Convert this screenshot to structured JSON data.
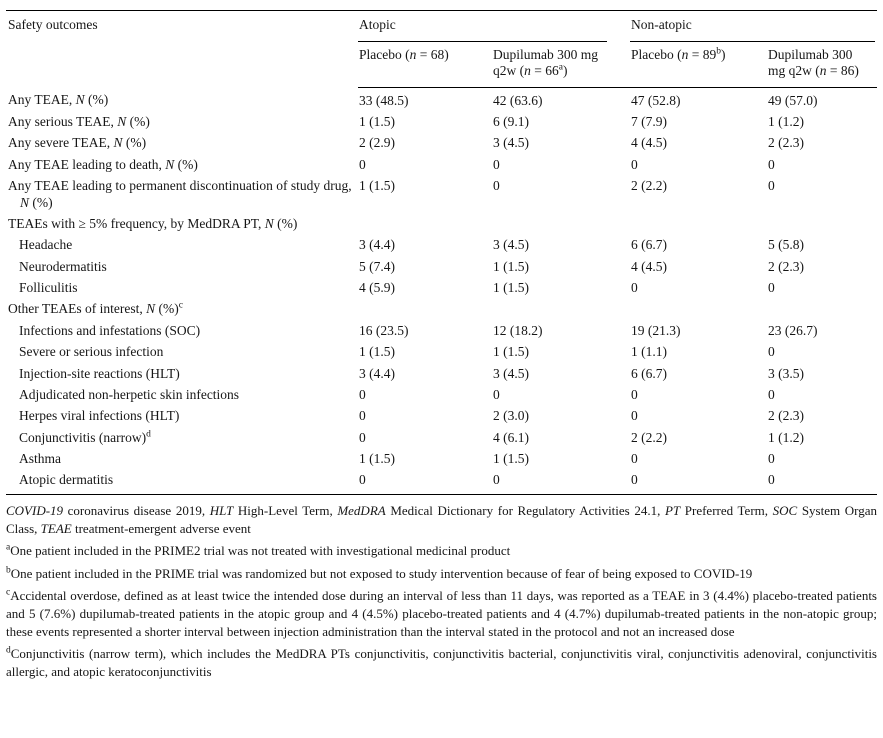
{
  "table": {
    "corner_label": "Safety outcomes",
    "groups": [
      {
        "label": "Atopic",
        "columns": [
          "Placebo (<i>n</i> = 68)",
          "Dupilumab 300 mg q2w (<i>n</i> = 66<sup>a</sup>)"
        ]
      },
      {
        "label": "Non-atopic",
        "columns": [
          "Placebo (<i>n</i> = 89<sup>b</sup>)",
          "Dupilumab 300 mg q2w (<i>n</i> = 86)"
        ]
      }
    ],
    "rows": [
      {
        "label": "Any TEAE, <i>N</i> (%)",
        "indent": 0,
        "section": false,
        "values": [
          "33 (48.5)",
          "42 (63.6)",
          "47 (52.8)",
          "49 (57.0)"
        ]
      },
      {
        "label": "Any serious TEAE, <i>N</i> (%)",
        "indent": 0,
        "section": false,
        "values": [
          "1 (1.5)",
          "6 (9.1)",
          "7 (7.9)",
          "1 (1.2)"
        ]
      },
      {
        "label": "Any severe TEAE, <i>N</i> (%)",
        "indent": 0,
        "section": false,
        "values": [
          "2 (2.9)",
          "3 (4.5)",
          "4 (4.5)",
          "2 (2.3)"
        ]
      },
      {
        "label": "Any TEAE leading to death, <i>N</i> (%)",
        "indent": 0,
        "section": false,
        "values": [
          "0",
          "0",
          "0",
          "0"
        ]
      },
      {
        "label": "Any TEAE leading to permanent discontinuation of study drug, <i>N</i> (%)",
        "indent": 0,
        "section": false,
        "values": [
          "1 (1.5)",
          "0",
          "2 (2.2)",
          "0"
        ]
      },
      {
        "label": "TEAEs with ≥ 5% frequency, by MedDRA PT, <i>N</i> (%)",
        "indent": 0,
        "section": true,
        "values": [
          "",
          "",
          "",
          ""
        ]
      },
      {
        "label": "Headache",
        "indent": 1,
        "section": false,
        "values": [
          "3 (4.4)",
          "3 (4.5)",
          "6 (6.7)",
          "5 (5.8)"
        ]
      },
      {
        "label": "Neurodermatitis",
        "indent": 1,
        "section": false,
        "values": [
          "5 (7.4)",
          "1 (1.5)",
          "4 (4.5)",
          "2 (2.3)"
        ]
      },
      {
        "label": "Folliculitis",
        "indent": 1,
        "section": false,
        "values": [
          "4 (5.9)",
          "1 (1.5)",
          "0",
          "0"
        ]
      },
      {
        "label": "Other TEAEs of interest, <i>N</i> (%)<sup>c</sup>",
        "indent": 0,
        "section": true,
        "values": [
          "",
          "",
          "",
          ""
        ]
      },
      {
        "label": "Infections and infestations (SOC)",
        "indent": 1,
        "section": false,
        "values": [
          "16 (23.5)",
          "12 (18.2)",
          "19 (21.3)",
          "23 (26.7)"
        ]
      },
      {
        "label": "Severe or serious infection",
        "indent": 1,
        "section": false,
        "values": [
          "1 (1.5)",
          "1 (1.5)",
          "1 (1.1)",
          "0"
        ]
      },
      {
        "label": "Injection-site reactions (HLT)",
        "indent": 1,
        "section": false,
        "values": [
          "3 (4.4)",
          "3 (4.5)",
          "6 (6.7)",
          "3 (3.5)"
        ]
      },
      {
        "label": "Adjudicated non-herpetic skin infections",
        "indent": 1,
        "section": false,
        "values": [
          "0",
          "0",
          "0",
          "0"
        ]
      },
      {
        "label": "Herpes viral infections (HLT)",
        "indent": 1,
        "section": false,
        "values": [
          "0",
          "2 (3.0)",
          "0",
          "2 (2.3)"
        ]
      },
      {
        "label": "Conjunctivitis (narrow)<sup>d</sup>",
        "indent": 1,
        "section": false,
        "values": [
          "0",
          "4 (6.1)",
          "2 (2.2)",
          "1 (1.2)"
        ]
      },
      {
        "label": "Asthma",
        "indent": 1,
        "section": false,
        "values": [
          "1 (1.5)",
          "1 (1.5)",
          "0",
          "0"
        ]
      },
      {
        "label": "Atopic dermatitis",
        "indent": 1,
        "section": false,
        "values": [
          "0",
          "0",
          "0",
          "0"
        ]
      }
    ]
  },
  "footnotes": [
    {
      "marker": "",
      "text": "<i>COVID-19</i> coronavirus disease 2019, <i>HLT</i> High-Level Term, <i>MedDRA</i> Medical Dictionary for Regulatory Activities 24.1, <i>PT</i> Preferred Term, <i>SOC</i> System Organ Class, <i>TEAE</i> treatment-emergent adverse event"
    },
    {
      "marker": "a",
      "text": "One patient included in the PRIME2 trial was not treated with investigational medicinal product"
    },
    {
      "marker": "b",
      "text": "One patient included in the PRIME trial was randomized but not exposed to study intervention because of fear of being exposed to COVID-19"
    },
    {
      "marker": "c",
      "text": "Accidental overdose, defined as at least twice the intended dose during an interval of less than 11 days, was reported as a TEAE in 3 (4.4%) placebo-treated patients and 5 (7.6%) dupilumab-treated patients in the atopic group and 4 (4.5%) placebo-treated patients and 4 (4.7%) dupilumab-treated patients in the non-atopic group; these events represented a shorter interval between injection administration than the interval stated in the protocol and not an increased dose"
    },
    {
      "marker": "d",
      "text": "Conjunctivitis (narrow term), which includes the MedDRA PTs conjunctivitis, conjunctivitis bacterial, conjunctivitis viral, conjunctivitis adenoviral, conjunctivitis allergic, and atopic keratoconjunctivitis"
    }
  ]
}
